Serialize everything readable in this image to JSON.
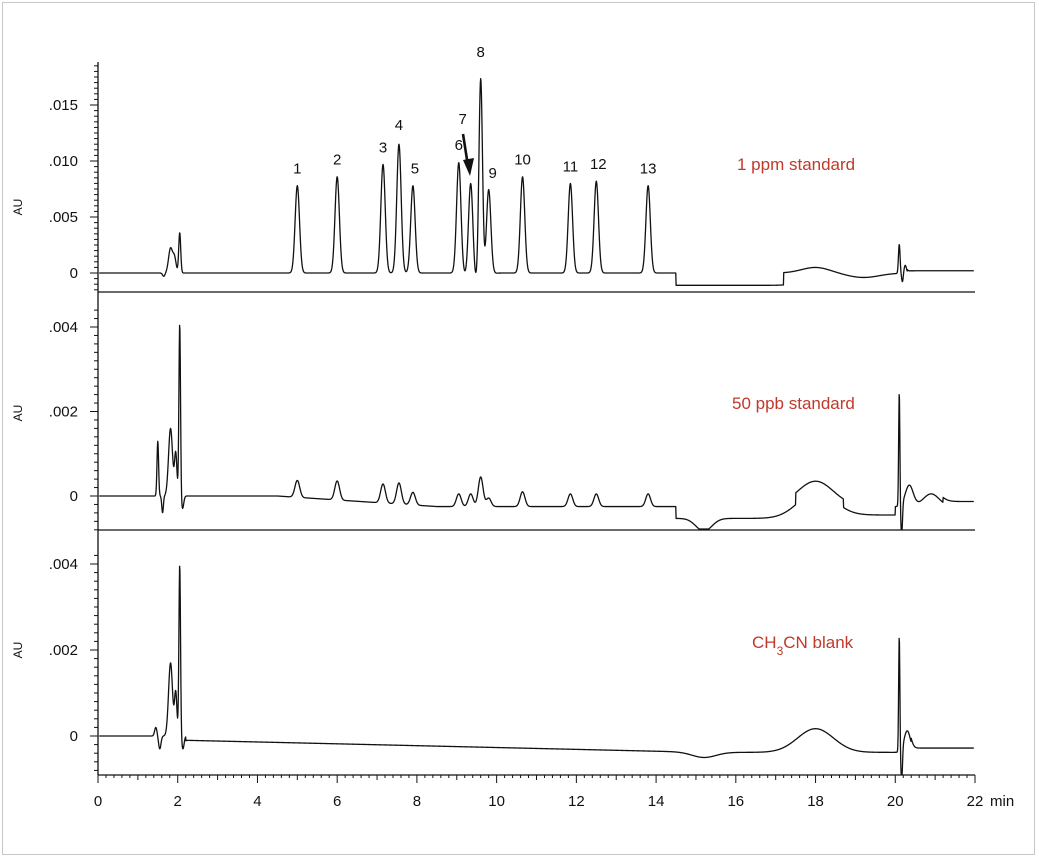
{
  "chart_data": [
    {
      "type": "line",
      "panel_label": "1 ppm standard",
      "ylabel": "AU",
      "yticks": [
        "0",
        ".005",
        ".010",
        ".015"
      ],
      "ylim": [
        -0.0015,
        0.019
      ],
      "peaks": [
        {
          "label": "1",
          "x": 5.0,
          "y": 0.0078
        },
        {
          "label": "2",
          "x": 6.0,
          "y": 0.0086
        },
        {
          "label": "3",
          "x": 7.15,
          "y": 0.0097
        },
        {
          "label": "4",
          "x": 7.55,
          "y": 0.0115
        },
        {
          "label": "5",
          "x": 7.9,
          "y": 0.0078
        },
        {
          "label": "6",
          "x": 9.05,
          "y": 0.0099
        },
        {
          "label": "7",
          "x": 9.35,
          "y": 0.0087
        },
        {
          "label": "8",
          "x": 9.6,
          "y": 0.0182
        },
        {
          "label": "9",
          "x": 9.8,
          "y": 0.0077
        },
        {
          "label": "10",
          "x": 10.65,
          "y": 0.0086
        },
        {
          "label": "11",
          "x": 11.85,
          "y": 0.008
        },
        {
          "label": "12",
          "x": 12.5,
          "y": 0.0082
        },
        {
          "label": "13",
          "x": 13.8,
          "y": 0.0078
        }
      ]
    },
    {
      "type": "line",
      "panel_label": "50 ppb standard",
      "ylabel": "AU",
      "yticks": [
        "0",
        ".002",
        ".004"
      ],
      "ylim": [
        -0.0009,
        0.0045
      ]
    },
    {
      "type": "line",
      "panel_label": "CH₃CN blank",
      "ylabel": "AU",
      "yticks": [
        "0",
        ".002",
        ".004"
      ],
      "ylim": [
        -0.0009,
        0.0045
      ]
    }
  ],
  "x_axis": {
    "xlim": [
      0,
      22
    ],
    "ticks": [
      "0",
      "2",
      "4",
      "6",
      "8",
      "10",
      "12",
      "14",
      "16",
      "18",
      "20",
      "22"
    ],
    "unit": "min"
  },
  "colors": {
    "trace": "#111111",
    "panel_label": "#c0392b",
    "axis": "#111111"
  }
}
